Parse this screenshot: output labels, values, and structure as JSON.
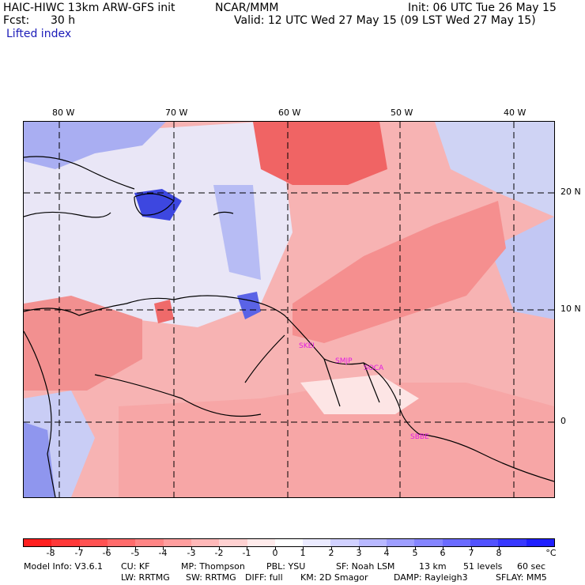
{
  "header": {
    "model_title": "HAIC-HIWC 13km ARW-GFS init",
    "org": "NCAR/MMM",
    "init": "Init: 06 UTC Tue 26 May 15",
    "fcst_label": "Fcst:",
    "fcst_value": "30 h",
    "valid": "Valid: 12 UTC Wed 27 May 15 (09 LST Wed 27 May 15)",
    "field": "Lifted index"
  },
  "map": {
    "lon_labels": [
      "80 W",
      "70 W",
      "60 W",
      "50 W",
      "40 W"
    ],
    "lat_labels": [
      "20 N",
      "10 N",
      "0"
    ],
    "sites": [
      "SKEI",
      "SMJP",
      "SOCA",
      "SBBE"
    ],
    "colors": {
      "ocean_neg": "#f7a3a3",
      "strong_neg": "#f05a5a",
      "neutral": "#fde5e5",
      "pos_light": "#c9cdf5",
      "pos_mid": "#8f96ee",
      "pos_strong": "#3d47e0",
      "line": "#000000"
    }
  },
  "colorbar": {
    "colors": [
      "#ff1f1f",
      "#ff3838",
      "#ff5252",
      "#ff6b6b",
      "#ff8585",
      "#ff9e9e",
      "#ffb8b8",
      "#ffd1d1",
      "#ffebeb",
      "#ffffff",
      "#ebebff",
      "#d1d1ff",
      "#b8b8ff",
      "#9e9eff",
      "#8585ff",
      "#6b6bff",
      "#5252ff",
      "#3838ff",
      "#1f1fff"
    ],
    "labels": [
      "-8",
      "-7",
      "-6",
      "-5",
      "-4",
      "-3",
      "-2",
      "-1",
      "0",
      "1",
      "2",
      "3",
      "4",
      "5",
      "6",
      "7",
      "8"
    ],
    "unit": "°C"
  },
  "footer": {
    "line1": [
      "Model Info: V3.6.1",
      "CU: KF",
      "MP: Thompson",
      "PBL: YSU",
      "SF: Noah LSM",
      "13 km",
      "51 levels",
      "60 sec"
    ],
    "line2": [
      "LW: RRTMG",
      "SW: RRTMG",
      "DIFF: full",
      "KM: 2D Smagor",
      "DAMP: Rayleigh3",
      "SFLAY: MM5"
    ]
  }
}
